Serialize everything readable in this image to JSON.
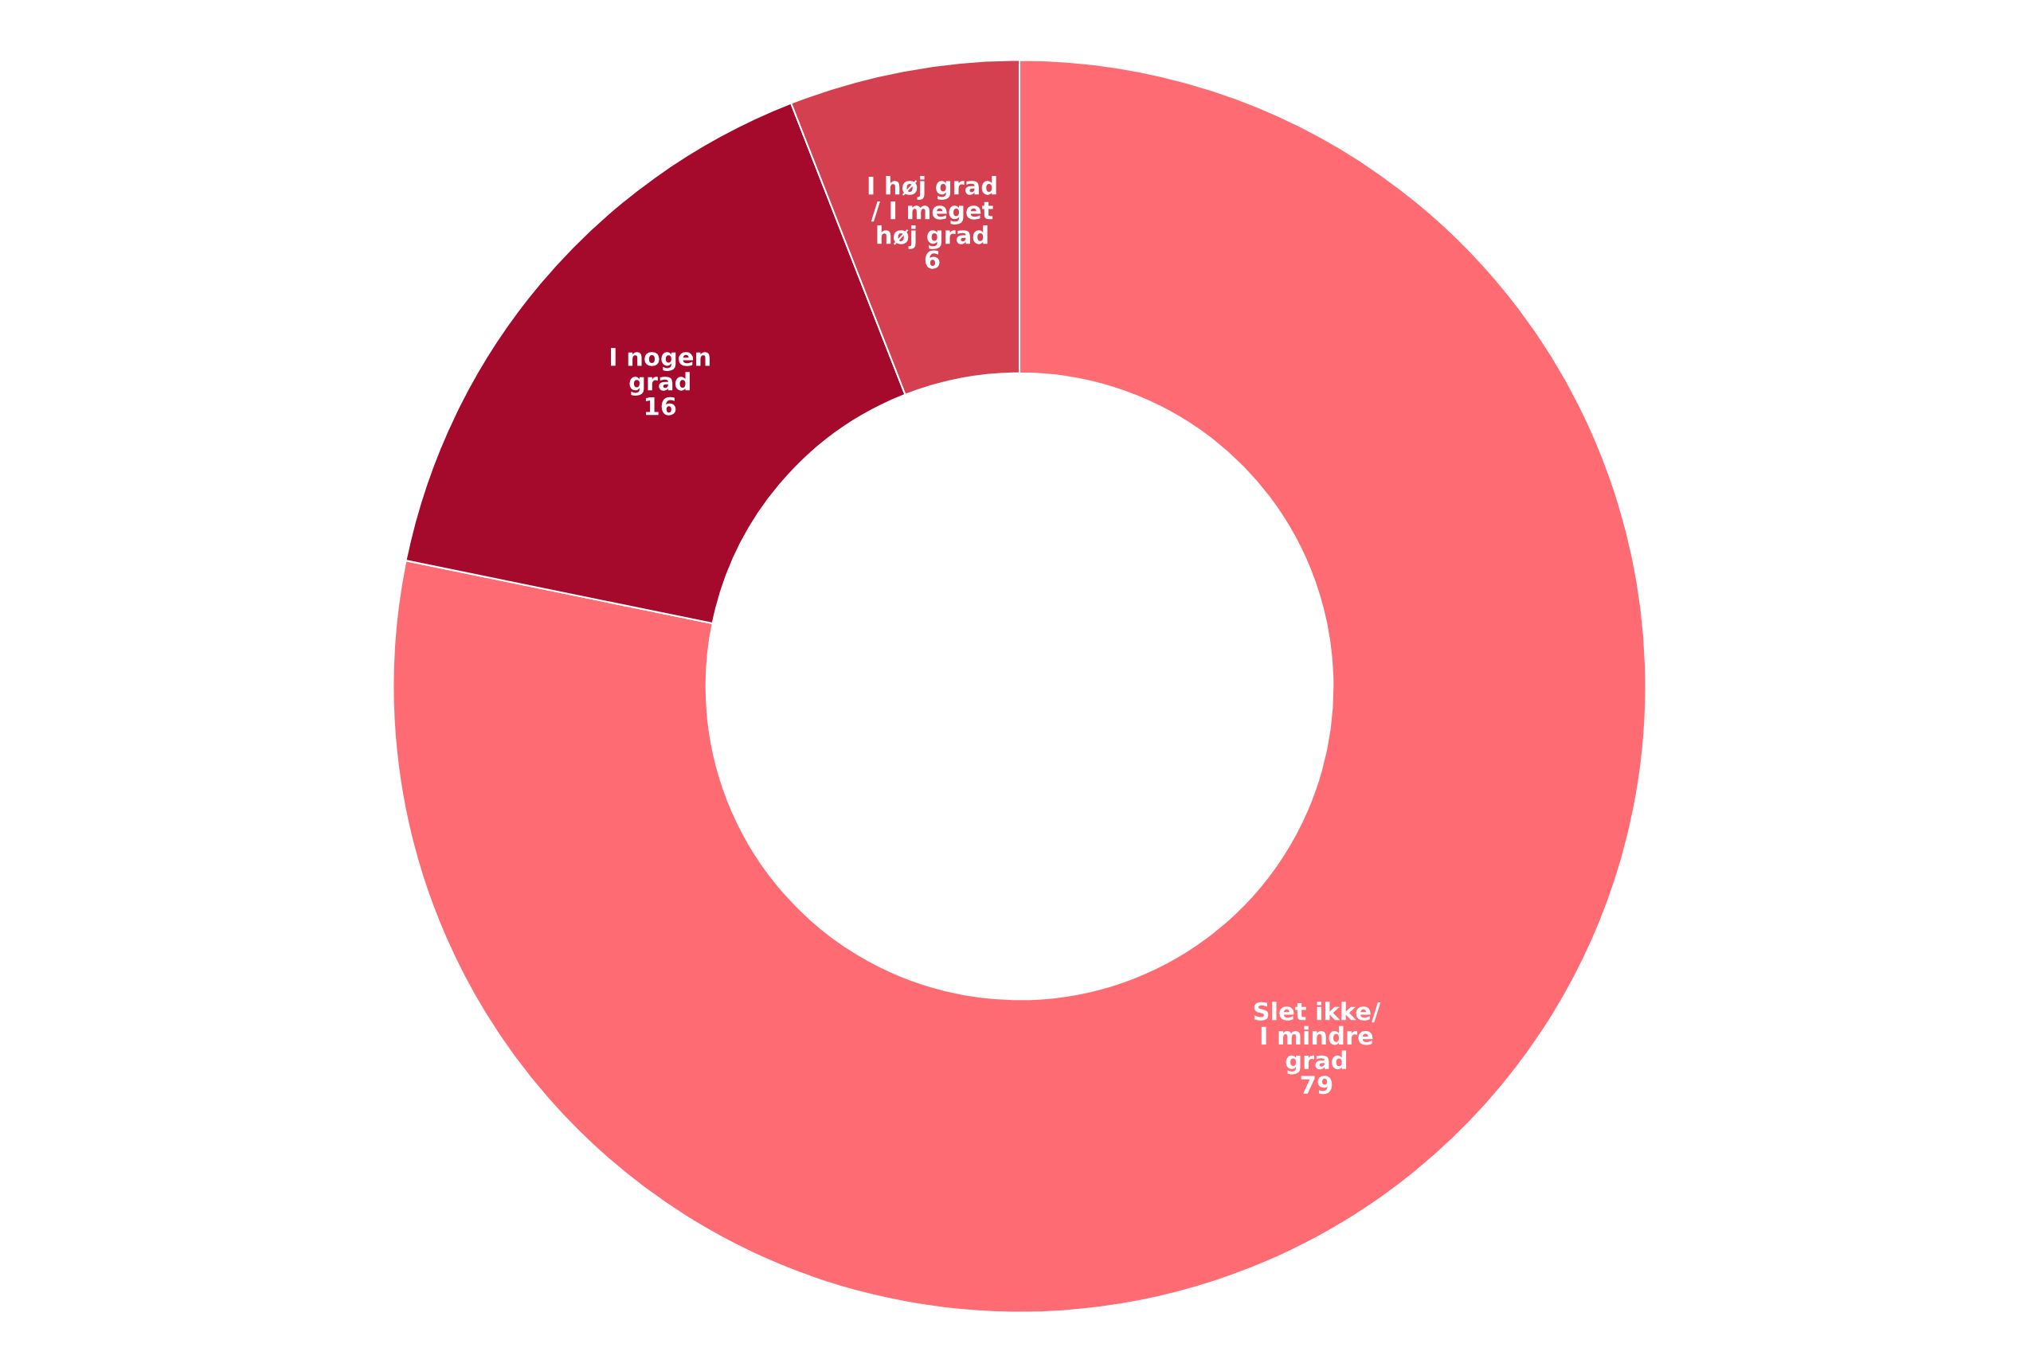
{
  "chart_data": {
    "type": "donut",
    "categories": [
      "Slet ikke/ I mindre grad",
      "I nogen grad",
      "I høj grad / I meget høj grad"
    ],
    "values": [
      79,
      16,
      6
    ],
    "colors": [
      "#ff6b73",
      "#a50a2c",
      "#d4404f"
    ],
    "data_labels": true
  }
}
